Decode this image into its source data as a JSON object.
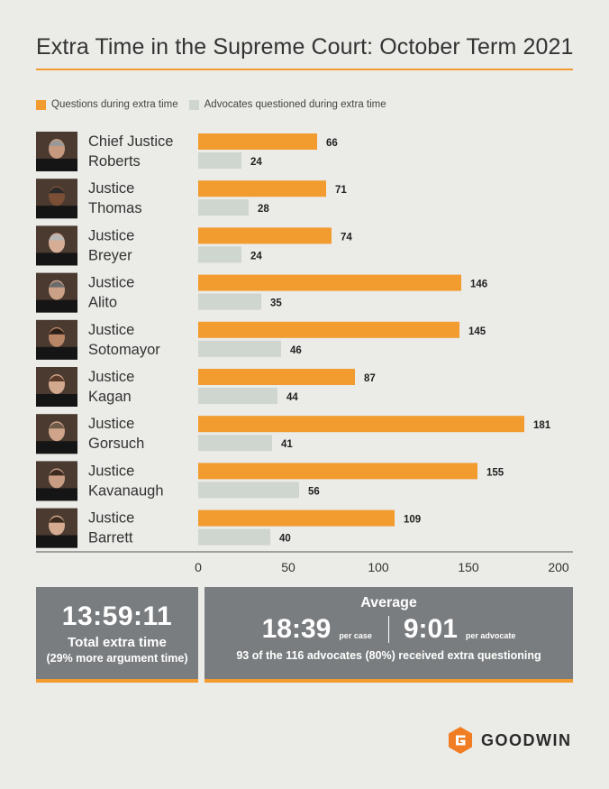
{
  "title": "Extra Time in the Supreme Court: October Term 2021",
  "legend": {
    "questions": "Questions during extra time",
    "advocates": "Advocates questioned during extra time"
  },
  "colors": {
    "questions": "#f29b2e",
    "advocates": "#cfd5cf",
    "accent": "#f29b2e",
    "box_bg": "#7a7d7f"
  },
  "chart_data": {
    "type": "bar",
    "orientation": "horizontal",
    "categories": [
      [
        "Chief Justice",
        "Roberts"
      ],
      [
        "Justice",
        "Thomas"
      ],
      [
        "Justice",
        "Breyer"
      ],
      [
        "Justice",
        "Alito"
      ],
      [
        "Justice",
        "Sotomayor"
      ],
      [
        "Justice",
        "Kagan"
      ],
      [
        "Justice",
        "Gorsuch"
      ],
      [
        "Justice",
        "Kavanaugh"
      ],
      [
        "Justice",
        "Barrett"
      ]
    ],
    "series": [
      {
        "name": "Questions during extra time",
        "values": [
          66,
          71,
          74,
          146,
          145,
          87,
          181,
          155,
          109
        ]
      },
      {
        "name": "Advocates questioned during extra time",
        "values": [
          24,
          28,
          24,
          35,
          46,
          44,
          41,
          56,
          40
        ]
      }
    ],
    "xlim": [
      0,
      200
    ],
    "xticks": [
      0,
      50,
      100,
      150,
      200
    ],
    "grid": false,
    "legend_position": "top-left"
  },
  "summary": {
    "total_time": "13:59:11",
    "total_label": "Total extra time",
    "total_note": "(29% more argument time)",
    "average_heading": "Average",
    "per_case_value": "18:39",
    "per_case_label": "per case",
    "per_advocate_value": "9:01",
    "per_advocate_label": "per advocate",
    "advocates_note": "93 of the 116 advocates (80%) received extra questioning"
  },
  "logo": {
    "text": "GOODWIN"
  }
}
